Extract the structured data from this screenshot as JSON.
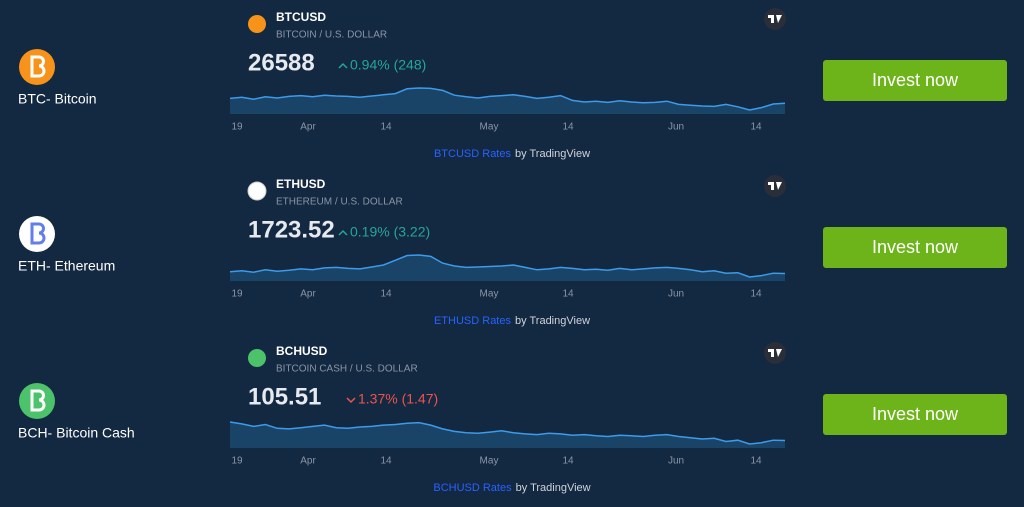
{
  "rows": [
    {
      "name": "BTC- Bitcoin",
      "icon_color": "#f7931a",
      "symbol": "BTCUSD",
      "description": "BITCOIN / U.S. DOLLAR",
      "price": 26588,
      "change": "0.94% (248)",
      "direction": "up",
      "x_labels": [
        "19",
        "Apr",
        "14",
        "May",
        "14",
        "Jun",
        "14"
      ],
      "prices": [
        27800,
        28100,
        27600,
        28200,
        27900,
        28300,
        28500,
        28200,
        28600,
        28400,
        28300,
        28100,
        28400,
        28700,
        29000,
        30200,
        30400,
        30300,
        29800,
        28600,
        28200,
        27900,
        28300,
        28500,
        28700,
        28300,
        27800,
        28100,
        28500,
        27300,
        26900,
        27100,
        26800,
        27200,
        26900,
        26700,
        26800,
        27100,
        26300,
        26100,
        25900,
        25800,
        26300,
        25700,
        24900,
        25500,
        26400,
        26588
      ],
      "credit_link": "BTCUSD Rates",
      "credit_suffix": "by TradingView",
      "button": "Invest now"
    },
    {
      "name": "ETH- Ethereum",
      "icon_color": "#ffffff",
      "symbol": "ETHUSD",
      "description": "ETHEREUM / U.S. DOLLAR",
      "price": 1723.52,
      "change": "0.19% (3.22)",
      "direction": "up",
      "x_labels": [
        "19",
        "Apr",
        "14",
        "May",
        "14",
        "Jun",
        "14"
      ],
      "prices": [
        1760,
        1780,
        1750,
        1800,
        1770,
        1790,
        1820,
        1800,
        1840,
        1850,
        1830,
        1820,
        1860,
        1900,
        2000,
        2100,
        2110,
        2080,
        1940,
        1880,
        1850,
        1860,
        1870,
        1880,
        1900,
        1850,
        1800,
        1820,
        1850,
        1830,
        1800,
        1810,
        1790,
        1830,
        1800,
        1820,
        1840,
        1850,
        1830,
        1800,
        1760,
        1780,
        1730,
        1740,
        1650,
        1680,
        1730,
        1723.52
      ],
      "credit_link": "ETHUSD Rates",
      "credit_suffix": "by TradingView",
      "button": "Invest now"
    },
    {
      "name": "BCH- Bitcoin Cash",
      "icon_color": "#4cc26a",
      "symbol": "BCHUSD",
      "description": "BITCOIN CASH / U.S. DOLLAR",
      "price": 105.51,
      "change": "1.37% (1.47)",
      "direction": "down",
      "x_labels": [
        "19",
        "Apr",
        "14",
        "May",
        "14",
        "Jun",
        "14"
      ],
      "prices": [
        135,
        132,
        128,
        131,
        125,
        124,
        126,
        128,
        130,
        126,
        125,
        127,
        128,
        130,
        131,
        133,
        134,
        130,
        124,
        120,
        118,
        117,
        119,
        121,
        118,
        116,
        115,
        117,
        116,
        114,
        115,
        113,
        112,
        114,
        113,
        112,
        114,
        115,
        112,
        110,
        108,
        109,
        104,
        106,
        100,
        102,
        106,
        105.51
      ],
      "credit_link": "BCHUSD Rates",
      "credit_suffix": "by TradingView",
      "button": "Invest now"
    }
  ]
}
